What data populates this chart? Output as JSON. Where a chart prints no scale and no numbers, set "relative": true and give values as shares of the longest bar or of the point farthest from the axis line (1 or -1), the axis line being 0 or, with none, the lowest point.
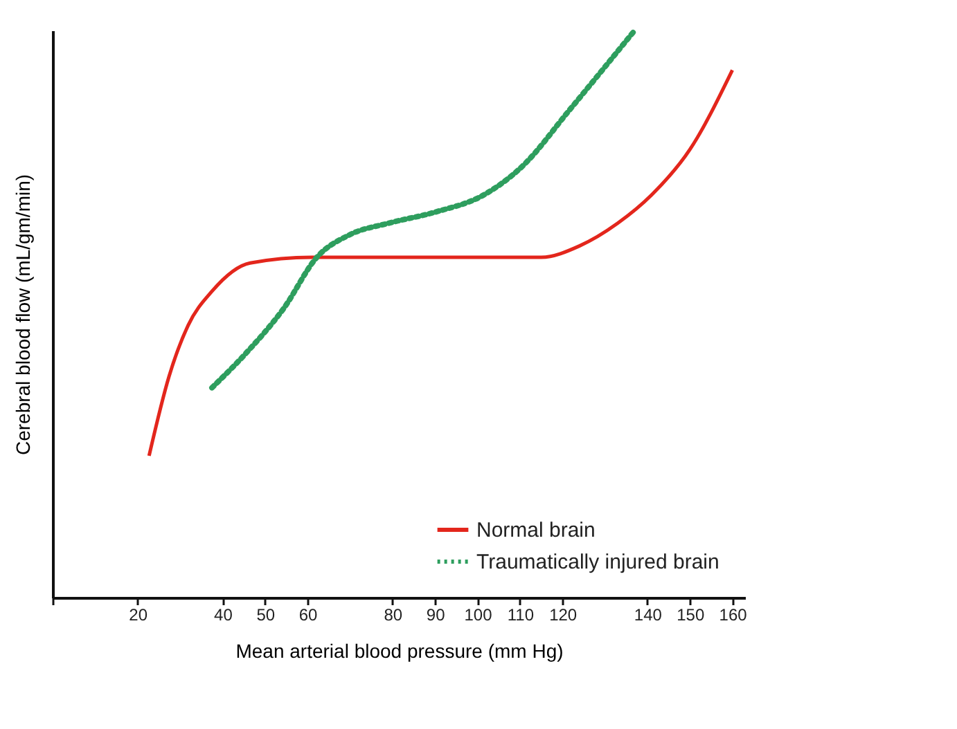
{
  "chart_data": {
    "type": "line",
    "relative": true,
    "xlabel": "Mean arterial blood pressure (mm Hg)",
    "ylabel": "Cerebral blood flow (mL/gm/min)",
    "xlim": [
      0,
      163
    ],
    "xticks": [
      {
        "value": 0,
        "label": null
      },
      20,
      40,
      50,
      60,
      80,
      90,
      100,
      110,
      120,
      140,
      150,
      160
    ],
    "legend": "bottom right",
    "marker": "none",
    "grid": false,
    "series": [
      {
        "name": "Normal brain",
        "color": "#e3261c",
        "line_style": "solid",
        "x": [
          22.7,
          27.4,
          31.9,
          37.5,
          46.5,
          61,
          88,
          115,
          124,
          133,
          141,
          150,
          160
        ],
        "values": [
          0.25,
          0.39,
          0.48,
          0.54,
          0.59,
          0.6,
          0.6,
          0.6,
          0.62,
          0.66,
          0.71,
          0.79,
          0.93
        ]
      },
      {
        "name": "Traumatically injured brain",
        "color": "#2e9e5e",
        "line_style": "dotted",
        "x": [
          37.5,
          45.4,
          54.4,
          62.2,
          70,
          79,
          90.2,
          101.5,
          110.5,
          121.7,
          137
        ],
        "values": [
          0.37,
          0.43,
          0.51,
          0.6,
          0.64,
          0.66,
          0.68,
          0.71,
          0.76,
          0.86,
          1.0
        ]
      }
    ]
  }
}
